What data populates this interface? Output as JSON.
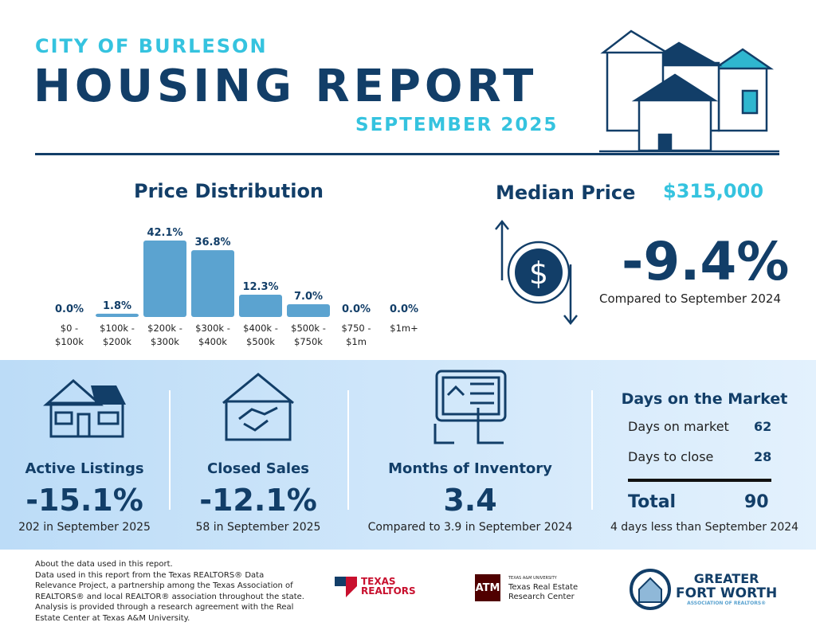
{
  "header": {
    "subtitle": "CITY OF BURLESON",
    "title": "HOUSING REPORT",
    "month": "SEPTEMBER 2025"
  },
  "median": {
    "label": "Median Price",
    "value": "$315,000",
    "change": "-9.4%",
    "compare": "Compared to September 2024"
  },
  "chart_data": {
    "type": "bar",
    "title": "Price Distribution",
    "categories": [
      "$0 - $100k",
      "$100k - $200k",
      "$200k - $300k",
      "$300k - $400k",
      "$400k - $500k",
      "$500k - $750k",
      "$750 - $1m",
      "$1m+"
    ],
    "category_lines": [
      [
        "$0 -",
        "$100k"
      ],
      [
        "$100k -",
        "$200k"
      ],
      [
        "$200k -",
        "$300k"
      ],
      [
        "$300k -",
        "$400k"
      ],
      [
        "$400k -",
        "$500k"
      ],
      [
        "$500k -",
        "$750k"
      ],
      [
        "$750 -",
        "$1m"
      ],
      [
        "$1m+",
        ""
      ]
    ],
    "values": [
      0.0,
      1.8,
      42.1,
      36.8,
      12.3,
      7.0,
      0.0,
      0.0
    ],
    "labels": [
      "0.0%",
      "1.8%",
      "42.1%",
      "36.8%",
      "12.3%",
      "7.0%",
      "0.0%",
      "0.0%"
    ],
    "color": "#5ba3d0",
    "label_color": "#123e68"
  },
  "stats": {
    "active": {
      "label": "Active Listings",
      "value": "-15.1%",
      "note": "202 in September 2025"
    },
    "closed": {
      "label": "Closed Sales",
      "value": "-12.1%",
      "note": "58 in September 2025"
    },
    "inventory": {
      "label": "Months of Inventory",
      "value": "3.4",
      "note": "Compared to 3.9 in September 2024"
    },
    "dom": {
      "title": "Days on the Market",
      "rows": [
        {
          "label": "Days on market",
          "value": "62"
        },
        {
          "label": "Days to close",
          "value": "28"
        }
      ],
      "total_label": "Total",
      "total_value": "90",
      "note": "4 days less than September 2024"
    }
  },
  "footer": {
    "heading": "About the data used in this report.",
    "text": "Data used in this report from the Texas REALTORS® Data Relevance Project, a partnership among the Texas Association of REALTORS® and local REALTOR® association throughout the state. Analysis is provided through a research agreement with the Real Estate Center at Texas A&M University.",
    "logos": {
      "texas_realtors": [
        "TEXAS",
        "REALTORS"
      ],
      "tamu": {
        "small": "TEXAS A&M UNIVERSITY",
        "line1": "Texas Real Estate",
        "line2": "Research Center"
      },
      "gfw": {
        "line1": "GREATER",
        "line2": "FORT WORTH",
        "line3": "ASSOCIATION OF REALTORS®"
      }
    }
  }
}
